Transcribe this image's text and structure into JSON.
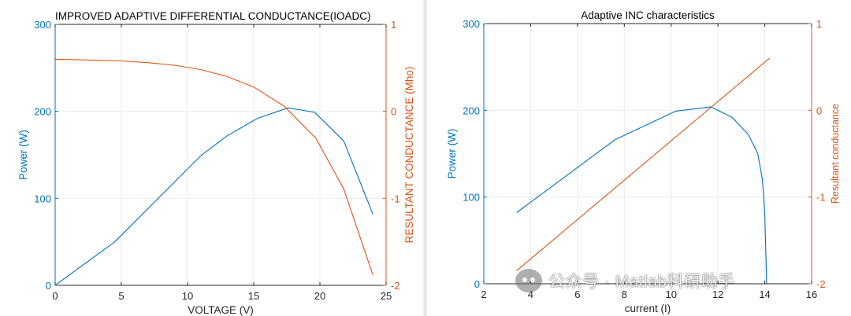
{
  "chart_data": [
    {
      "type": "line",
      "title": "IMPROVED ADAPTIVE DIFFERENTIAL CONDUCTANCE(IOADC)",
      "xlabel": "VOLTAGE (V)",
      "ylabel_left": "Power (W)",
      "ylabel_right": "RESULTANT CONDUCTANCE (Mho)",
      "xlim": [
        0,
        25
      ],
      "ylim_left": [
        0,
        300
      ],
      "ylim_right": [
        -2,
        1
      ],
      "x_ticks": [
        "0",
        "5",
        "10",
        "15",
        "20",
        "25"
      ],
      "y_ticks_left": [
        "0",
        "100",
        "200",
        "300"
      ],
      "y_ticks_right": [
        "-2",
        "-1",
        "0",
        "1"
      ],
      "grid": true,
      "series": [
        {
          "name": "Power",
          "axis": "left",
          "color": "#0072BD",
          "x": [
            0,
            4.5,
            11,
            13,
            15.3,
            17.6,
            19.6,
            21.8,
            24
          ],
          "y": [
            0,
            50,
            149,
            172,
            192,
            204,
            199,
            166,
            82
          ]
        },
        {
          "name": "Resultant conductance",
          "axis": "right",
          "color": "#D95319",
          "x": [
            0,
            5,
            7,
            9,
            11,
            13,
            15,
            17.3,
            19.7,
            21.8,
            24
          ],
          "y": [
            0.6,
            0.58,
            0.56,
            0.53,
            0.48,
            0.4,
            0.28,
            0.06,
            -0.31,
            -0.89,
            -1.88
          ]
        }
      ]
    },
    {
      "type": "line",
      "title": "Adaptive INC characteristics",
      "xlabel": "current (I)",
      "ylabel_left": "Power (W)",
      "ylabel_right": "Resultant conductance",
      "xlim": [
        2,
        16
      ],
      "ylim_left": [
        0,
        300
      ],
      "ylim_right": [
        -2,
        1
      ],
      "x_ticks": [
        "2",
        "4",
        "6",
        "8",
        "10",
        "12",
        "14",
        "16"
      ],
      "y_ticks_left": [
        "0",
        "100",
        "200",
        "300"
      ],
      "y_ticks_right": [
        "-2",
        "-1",
        "0",
        "1"
      ],
      "grid": true,
      "series": [
        {
          "name": "Power",
          "axis": "left",
          "color": "#0072BD",
          "x": [
            3.4,
            7.6,
            10.2,
            11.7,
            12.6,
            13.3,
            13.7,
            13.9,
            14.0,
            14.05,
            14.08
          ],
          "y": [
            82,
            166,
            199,
            204,
            192,
            172,
            150,
            120,
            80,
            30,
            0
          ]
        },
        {
          "name": "Resultant conductance",
          "axis": "right",
          "color": "#D95319",
          "x": [
            3.4,
            14.2
          ],
          "y": [
            -1.85,
            0.6
          ]
        }
      ]
    }
  ],
  "watermark": {
    "text": "公众号 · Matlab科研助手",
    "icon": "wechat-icon"
  }
}
